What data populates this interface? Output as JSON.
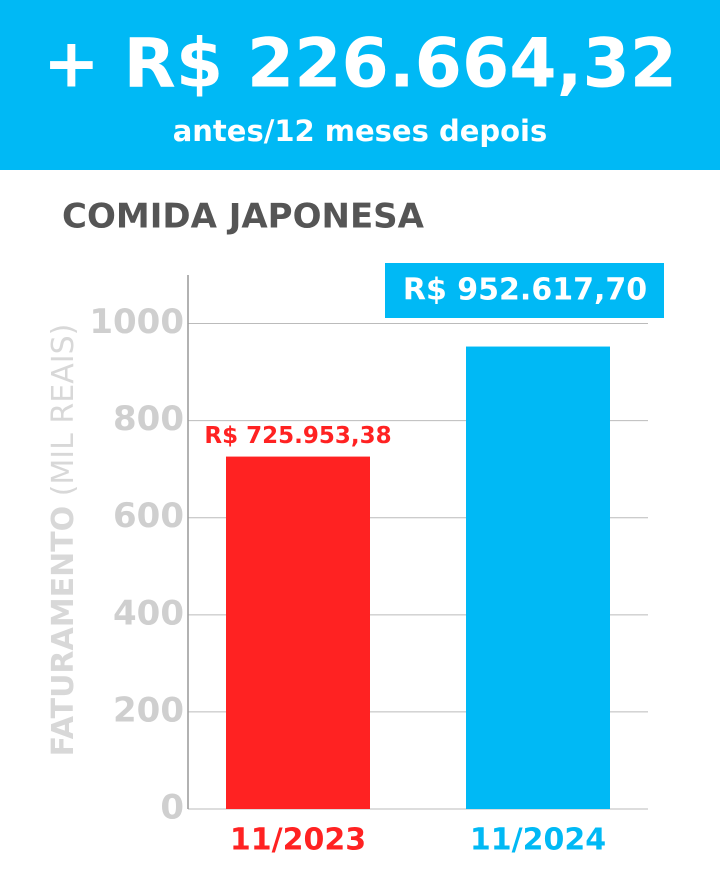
{
  "chart_data": {
    "type": "bar",
    "title": "+ R$ 226.664,32",
    "subtitle": "antes/12 meses depois",
    "section_title": "COMIDA JAPONESA",
    "y_label": [
      "FATURAMENTO",
      "(MIL REAIS)"
    ],
    "categories": [
      "11/2023",
      "11/2024"
    ],
    "values": [
      725.95338,
      952.6177
    ],
    "value_labels": [
      "R$ 725.953,38",
      "R$ 952.617,70"
    ],
    "colors": [
      "#ff2222",
      "#00b9f5"
    ],
    "ylim": [
      0,
      1100
    ],
    "yticks": [
      0,
      200,
      400,
      600,
      800,
      1000
    ],
    "grid": true
  }
}
